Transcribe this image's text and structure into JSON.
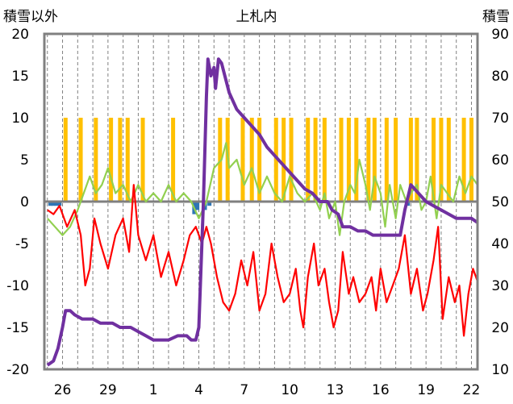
{
  "chart_data": {
    "type": "line",
    "title": "上札内",
    "left_axis_label": "積雪以外",
    "right_axis_label": "積雪",
    "left_ylim": [
      -20,
      20
    ],
    "left_yticks": [
      20,
      15,
      10,
      5,
      0,
      -5,
      -10,
      -15,
      -20
    ],
    "right_ylim": [
      10,
      90
    ],
    "right_yticks": [
      90,
      80,
      70,
      60,
      50,
      40,
      30,
      20,
      10
    ],
    "x_range": [
      24.8,
      53.4
    ],
    "x_ticks": [
      {
        "pos": 26,
        "label": "26"
      },
      {
        "pos": 29,
        "label": "29"
      },
      {
        "pos": 32,
        "label": "1"
      },
      {
        "pos": 35,
        "label": "4"
      },
      {
        "pos": 38,
        "label": "7"
      },
      {
        "pos": 41,
        "label": "10"
      },
      {
        "pos": 44,
        "label": "13"
      },
      {
        "pos": 47,
        "label": "16"
      },
      {
        "pos": 50,
        "label": "19"
      },
      {
        "pos": 53,
        "label": "22"
      }
    ],
    "grid": "vertical dashed, daily",
    "colors": {
      "precip": "#FFC000",
      "precip_negative": "#2E75B6",
      "max_temp": "#92D050",
      "min_temp": "#FF0000",
      "snow_depth": "#7030A0",
      "zero_line": "#7F7F7F",
      "frame": "#808080"
    },
    "series": [
      {
        "key": "precip",
        "axis": "left",
        "type": "bar",
        "points": [
          [
            26.2,
            10
          ],
          [
            27.2,
            10
          ],
          [
            28.2,
            10
          ],
          [
            29.2,
            10
          ],
          [
            29.8,
            10
          ],
          [
            30.3,
            10
          ],
          [
            31.3,
            10
          ],
          [
            33.3,
            10
          ],
          [
            36.4,
            10
          ],
          [
            36.9,
            10
          ],
          [
            37.9,
            10
          ],
          [
            38.5,
            10
          ],
          [
            39.0,
            10
          ],
          [
            40.1,
            10
          ],
          [
            40.6,
            10
          ],
          [
            41.1,
            10
          ],
          [
            42.2,
            10
          ],
          [
            42.7,
            10
          ],
          [
            43.3,
            10
          ],
          [
            44.4,
            10
          ],
          [
            44.9,
            10
          ],
          [
            45.4,
            10
          ],
          [
            46.2,
            10
          ],
          [
            46.6,
            10
          ],
          [
            47.4,
            10
          ],
          [
            48.0,
            10
          ],
          [
            49.0,
            10
          ],
          [
            49.4,
            10
          ],
          [
            50.5,
            10
          ],
          [
            51.0,
            10
          ],
          [
            51.5,
            10
          ],
          [
            52.5,
            10
          ],
          [
            53.0,
            10
          ]
        ]
      },
      {
        "key": "precip_negative",
        "axis": "left",
        "type": "bar",
        "points": [
          [
            25.2,
            -0.5
          ],
          [
            25.4,
            -0.5
          ],
          [
            25.6,
            -0.5
          ],
          [
            25.8,
            -0.5
          ],
          [
            34.7,
            -1.5
          ],
          [
            34.9,
            -1.0
          ],
          [
            35.4,
            -1.0
          ],
          [
            35.7,
            -0.5
          ],
          [
            48.8,
            -0.5
          ]
        ]
      },
      {
        "key": "max_temp",
        "axis": "left",
        "type": "line",
        "points": [
          [
            25.0,
            -2
          ],
          [
            25.5,
            -3
          ],
          [
            26.0,
            -4
          ],
          [
            26.5,
            -3
          ],
          [
            27.0,
            -1
          ],
          [
            27.4,
            1
          ],
          [
            27.8,
            3
          ],
          [
            28.2,
            1
          ],
          [
            28.6,
            2
          ],
          [
            29.0,
            4
          ],
          [
            29.5,
            1
          ],
          [
            30.0,
            2
          ],
          [
            30.5,
            0
          ],
          [
            31.0,
            2
          ],
          [
            31.5,
            0
          ],
          [
            32.0,
            1
          ],
          [
            32.5,
            0
          ],
          [
            33.0,
            2
          ],
          [
            33.5,
            0
          ],
          [
            34.0,
            1
          ],
          [
            34.5,
            0
          ],
          [
            35.0,
            -2
          ],
          [
            35.5,
            0
          ],
          [
            36.0,
            4
          ],
          [
            36.5,
            5
          ],
          [
            36.8,
            7
          ],
          [
            37.0,
            4
          ],
          [
            37.5,
            5
          ],
          [
            38.0,
            2
          ],
          [
            38.5,
            4
          ],
          [
            39.0,
            1
          ],
          [
            39.5,
            3
          ],
          [
            40.0,
            1
          ],
          [
            40.5,
            0
          ],
          [
            41.0,
            3
          ],
          [
            41.5,
            1
          ],
          [
            42.0,
            0
          ],
          [
            42.5,
            1
          ],
          [
            43.0,
            -1
          ],
          [
            43.3,
            1
          ],
          [
            43.6,
            -2
          ],
          [
            44.0,
            0
          ],
          [
            44.3,
            -4
          ],
          [
            44.6,
            0
          ],
          [
            45.0,
            2
          ],
          [
            45.3,
            1
          ],
          [
            45.6,
            5
          ],
          [
            46.0,
            2
          ],
          [
            46.3,
            -1
          ],
          [
            46.6,
            3
          ],
          [
            47.0,
            1
          ],
          [
            47.3,
            -3
          ],
          [
            47.6,
            2
          ],
          [
            48.0,
            -2
          ],
          [
            48.3,
            2
          ],
          [
            48.7,
            0
          ],
          [
            49.0,
            1
          ],
          [
            49.4,
            2
          ],
          [
            49.7,
            -1
          ],
          [
            50.0,
            0
          ],
          [
            50.3,
            3
          ],
          [
            50.7,
            -2
          ],
          [
            51.0,
            2
          ],
          [
            51.4,
            1
          ],
          [
            51.8,
            0
          ],
          [
            52.2,
            3
          ],
          [
            52.6,
            1
          ],
          [
            53.0,
            3
          ],
          [
            53.4,
            2
          ]
        ]
      },
      {
        "key": "min_temp",
        "axis": "left",
        "type": "line",
        "points": [
          [
            25.0,
            -1
          ],
          [
            25.4,
            -1.5
          ],
          [
            25.8,
            -0.5
          ],
          [
            26.3,
            -3
          ],
          [
            26.8,
            -1
          ],
          [
            27.2,
            -4
          ],
          [
            27.5,
            -10
          ],
          [
            27.8,
            -8
          ],
          [
            28.1,
            -2
          ],
          [
            28.5,
            -5
          ],
          [
            29.0,
            -8
          ],
          [
            29.5,
            -4
          ],
          [
            30.0,
            -2
          ],
          [
            30.4,
            -6
          ],
          [
            30.7,
            2
          ],
          [
            31.0,
            -4
          ],
          [
            31.5,
            -7
          ],
          [
            32.0,
            -4
          ],
          [
            32.5,
            -9
          ],
          [
            33.0,
            -6
          ],
          [
            33.5,
            -10
          ],
          [
            34.0,
            -7
          ],
          [
            34.4,
            -4
          ],
          [
            34.8,
            -3
          ],
          [
            35.2,
            -5
          ],
          [
            35.5,
            -3
          ],
          [
            35.8,
            -5
          ],
          [
            36.2,
            -9
          ],
          [
            36.6,
            -12
          ],
          [
            37.0,
            -13
          ],
          [
            37.4,
            -11
          ],
          [
            37.8,
            -7
          ],
          [
            38.2,
            -10
          ],
          [
            38.6,
            -6
          ],
          [
            39.0,
            -13
          ],
          [
            39.4,
            -11
          ],
          [
            39.8,
            -5
          ],
          [
            40.2,
            -9
          ],
          [
            40.6,
            -12
          ],
          [
            41.0,
            -11
          ],
          [
            41.4,
            -8
          ],
          [
            41.7,
            -13
          ],
          [
            41.9,
            -15
          ],
          [
            42.2,
            -9
          ],
          [
            42.6,
            -5
          ],
          [
            42.9,
            -10
          ],
          [
            43.3,
            -8
          ],
          [
            43.6,
            -12
          ],
          [
            43.9,
            -15
          ],
          [
            44.2,
            -13
          ],
          [
            44.5,
            -6
          ],
          [
            44.9,
            -11
          ],
          [
            45.2,
            -9
          ],
          [
            45.6,
            -12
          ],
          [
            46.0,
            -11
          ],
          [
            46.4,
            -9
          ],
          [
            46.7,
            -13
          ],
          [
            47.0,
            -8
          ],
          [
            47.4,
            -12
          ],
          [
            47.8,
            -10
          ],
          [
            48.2,
            -8
          ],
          [
            48.6,
            -4
          ],
          [
            49.0,
            -11
          ],
          [
            49.4,
            -8
          ],
          [
            49.8,
            -13
          ],
          [
            50.1,
            -11
          ],
          [
            50.5,
            -7
          ],
          [
            50.8,
            -3
          ],
          [
            51.1,
            -14
          ],
          [
            51.5,
            -9
          ],
          [
            51.9,
            -12
          ],
          [
            52.2,
            -10
          ],
          [
            52.5,
            -16
          ],
          [
            52.8,
            -11
          ],
          [
            53.1,
            -8
          ],
          [
            53.4,
            -9.5
          ]
        ]
      },
      {
        "key": "snow_depth",
        "axis": "right",
        "type": "line",
        "points": [
          [
            25.0,
            11
          ],
          [
            25.4,
            12
          ],
          [
            25.7,
            15
          ],
          [
            26.0,
            20
          ],
          [
            26.2,
            24
          ],
          [
            26.5,
            24
          ],
          [
            26.8,
            23
          ],
          [
            27.3,
            22
          ],
          [
            28.0,
            22
          ],
          [
            28.5,
            21
          ],
          [
            29.3,
            21
          ],
          [
            29.8,
            20
          ],
          [
            30.5,
            20
          ],
          [
            31.0,
            19
          ],
          [
            31.5,
            18
          ],
          [
            32.0,
            17
          ],
          [
            33.0,
            17
          ],
          [
            33.6,
            18
          ],
          [
            34.2,
            18
          ],
          [
            34.5,
            17
          ],
          [
            34.8,
            17
          ],
          [
            35.0,
            20
          ],
          [
            35.3,
            50
          ],
          [
            35.5,
            75
          ],
          [
            35.6,
            84
          ],
          [
            35.8,
            80
          ],
          [
            36.0,
            82
          ],
          [
            36.1,
            77
          ],
          [
            36.3,
            84
          ],
          [
            36.5,
            83
          ],
          [
            37.0,
            76
          ],
          [
            37.5,
            72
          ],
          [
            38.0,
            70
          ],
          [
            38.5,
            68
          ],
          [
            39.0,
            66
          ],
          [
            39.5,
            63
          ],
          [
            40.0,
            61
          ],
          [
            40.5,
            59
          ],
          [
            41.0,
            57
          ],
          [
            41.5,
            55
          ],
          [
            42.0,
            53
          ],
          [
            42.5,
            52
          ],
          [
            43.0,
            50
          ],
          [
            43.5,
            50
          ],
          [
            43.8,
            48
          ],
          [
            44.2,
            47
          ],
          [
            44.5,
            44
          ],
          [
            45.0,
            44
          ],
          [
            45.5,
            43
          ],
          [
            46.0,
            43
          ],
          [
            46.5,
            42
          ],
          [
            47.0,
            42
          ],
          [
            47.7,
            42
          ],
          [
            48.3,
            42
          ],
          [
            48.6,
            48
          ],
          [
            49.0,
            54
          ],
          [
            49.5,
            52
          ],
          [
            50.0,
            50
          ],
          [
            50.5,
            49
          ],
          [
            51.0,
            48
          ],
          [
            52.0,
            46
          ],
          [
            53.0,
            46
          ],
          [
            53.4,
            45
          ]
        ]
      }
    ]
  }
}
